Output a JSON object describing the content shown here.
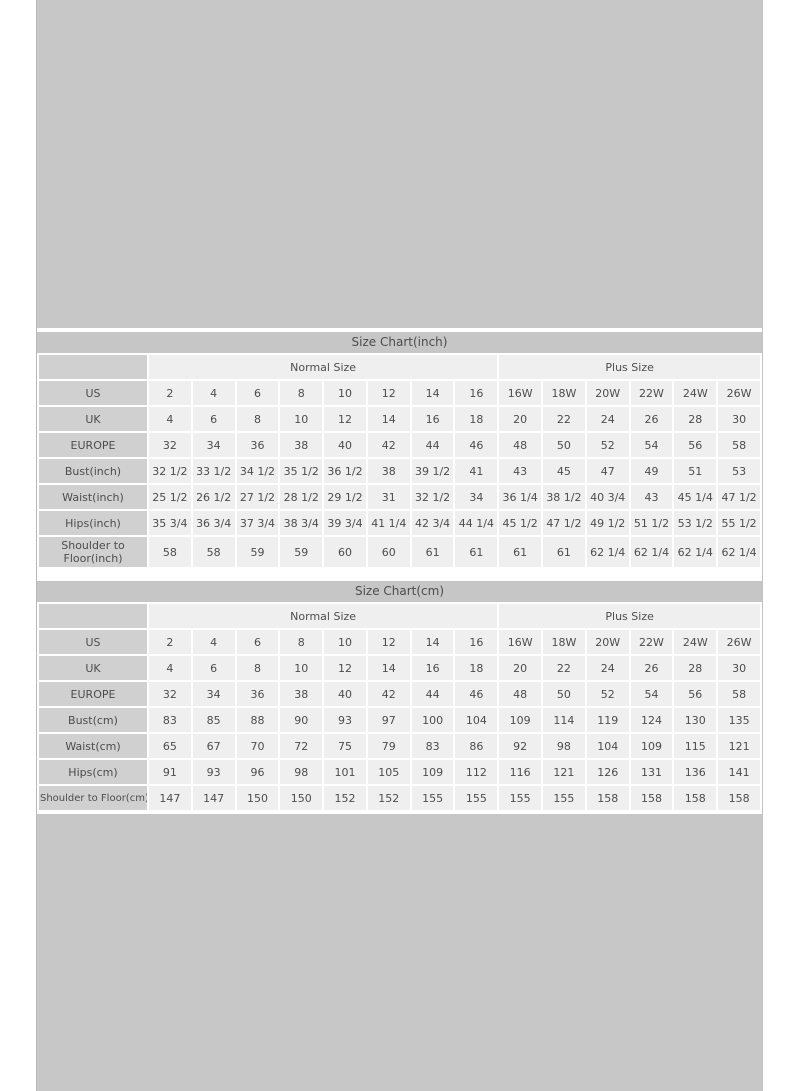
{
  "page": {
    "background": "#ffffff",
    "panel_color": "#c7c7c7"
  },
  "colors": {
    "title_bar_bg": "#c6c6c6",
    "label_cell_bg": "#d0d0d0",
    "data_cell_bg": "#efefef",
    "cell_gap": "#ffffff",
    "text": "#4d4d4d"
  },
  "chart_data": [
    {
      "type": "table",
      "title": "Size Chart(inch)",
      "group_headers": [
        {
          "label": "Normal Size",
          "colspan": 8
        },
        {
          "label": "Plus Size",
          "colspan": 6
        }
      ],
      "rows": [
        {
          "label": "US",
          "values": [
            "2",
            "4",
            "6",
            "8",
            "10",
            "12",
            "14",
            "16",
            "16W",
            "18W",
            "20W",
            "22W",
            "24W",
            "26W"
          ]
        },
        {
          "label": "UK",
          "values": [
            "4",
            "6",
            "8",
            "10",
            "12",
            "14",
            "16",
            "18",
            "20",
            "22",
            "24",
            "26",
            "28",
            "30"
          ]
        },
        {
          "label": "EUROPE",
          "values": [
            "32",
            "34",
            "36",
            "38",
            "40",
            "42",
            "44",
            "46",
            "48",
            "50",
            "52",
            "54",
            "56",
            "58"
          ]
        },
        {
          "label": "Bust(inch)",
          "values": [
            "32 1/2",
            "33 1/2",
            "34 1/2",
            "35 1/2",
            "36 1/2",
            "38",
            "39 1/2",
            "41",
            "43",
            "45",
            "47",
            "49",
            "51",
            "53"
          ]
        },
        {
          "label": "Waist(inch)",
          "values": [
            "25 1/2",
            "26 1/2",
            "27 1/2",
            "28 1/2",
            "29 1/2",
            "31",
            "32 1/2",
            "34",
            "36 1/4",
            "38 1/2",
            "40 3/4",
            "43",
            "45 1/4",
            "47 1/2"
          ]
        },
        {
          "label": "Hips(inch)",
          "values": [
            "35 3/4",
            "36 3/4",
            "37 3/4",
            "38 3/4",
            "39 3/4",
            "41 1/4",
            "42 3/4",
            "44 1/4",
            "45 1/2",
            "47 1/2",
            "49 1/2",
            "51 1/2",
            "53 1/2",
            "55 1/2"
          ]
        },
        {
          "label": "Shoulder to Floor(inch)",
          "values": [
            "58",
            "58",
            "59",
            "59",
            "60",
            "60",
            "61",
            "61",
            "61",
            "61",
            "62 1/4",
            "62 1/4",
            "62 1/4",
            "62 1/4"
          ]
        }
      ]
    },
    {
      "type": "table",
      "title": "Size Chart(cm)",
      "group_headers": [
        {
          "label": "Normal Size",
          "colspan": 8
        },
        {
          "label": "Plus Size",
          "colspan": 6
        }
      ],
      "rows": [
        {
          "label": "US",
          "values": [
            "2",
            "4",
            "6",
            "8",
            "10",
            "12",
            "14",
            "16",
            "16W",
            "18W",
            "20W",
            "22W",
            "24W",
            "26W"
          ]
        },
        {
          "label": "UK",
          "values": [
            "4",
            "6",
            "8",
            "10",
            "12",
            "14",
            "16",
            "18",
            "20",
            "22",
            "24",
            "26",
            "28",
            "30"
          ]
        },
        {
          "label": "EUROPE",
          "values": [
            "32",
            "34",
            "36",
            "38",
            "40",
            "42",
            "44",
            "46",
            "48",
            "50",
            "52",
            "54",
            "56",
            "58"
          ]
        },
        {
          "label": "Bust(cm)",
          "values": [
            "83",
            "85",
            "88",
            "90",
            "93",
            "97",
            "100",
            "104",
            "109",
            "114",
            "119",
            "124",
            "130",
            "135"
          ]
        },
        {
          "label": "Waist(cm)",
          "values": [
            "65",
            "67",
            "70",
            "72",
            "75",
            "79",
            "83",
            "86",
            "92",
            "98",
            "104",
            "109",
            "115",
            "121"
          ]
        },
        {
          "label": "Hips(cm)",
          "values": [
            "91",
            "93",
            "96",
            "98",
            "101",
            "105",
            "109",
            "112",
            "116",
            "121",
            "126",
            "131",
            "136",
            "141"
          ]
        },
        {
          "label": "Shoulder to Floor(cm)",
          "values": [
            "147",
            "147",
            "150",
            "150",
            "152",
            "152",
            "155",
            "155",
            "155",
            "155",
            "158",
            "158",
            "158",
            "158"
          ]
        }
      ]
    }
  ]
}
